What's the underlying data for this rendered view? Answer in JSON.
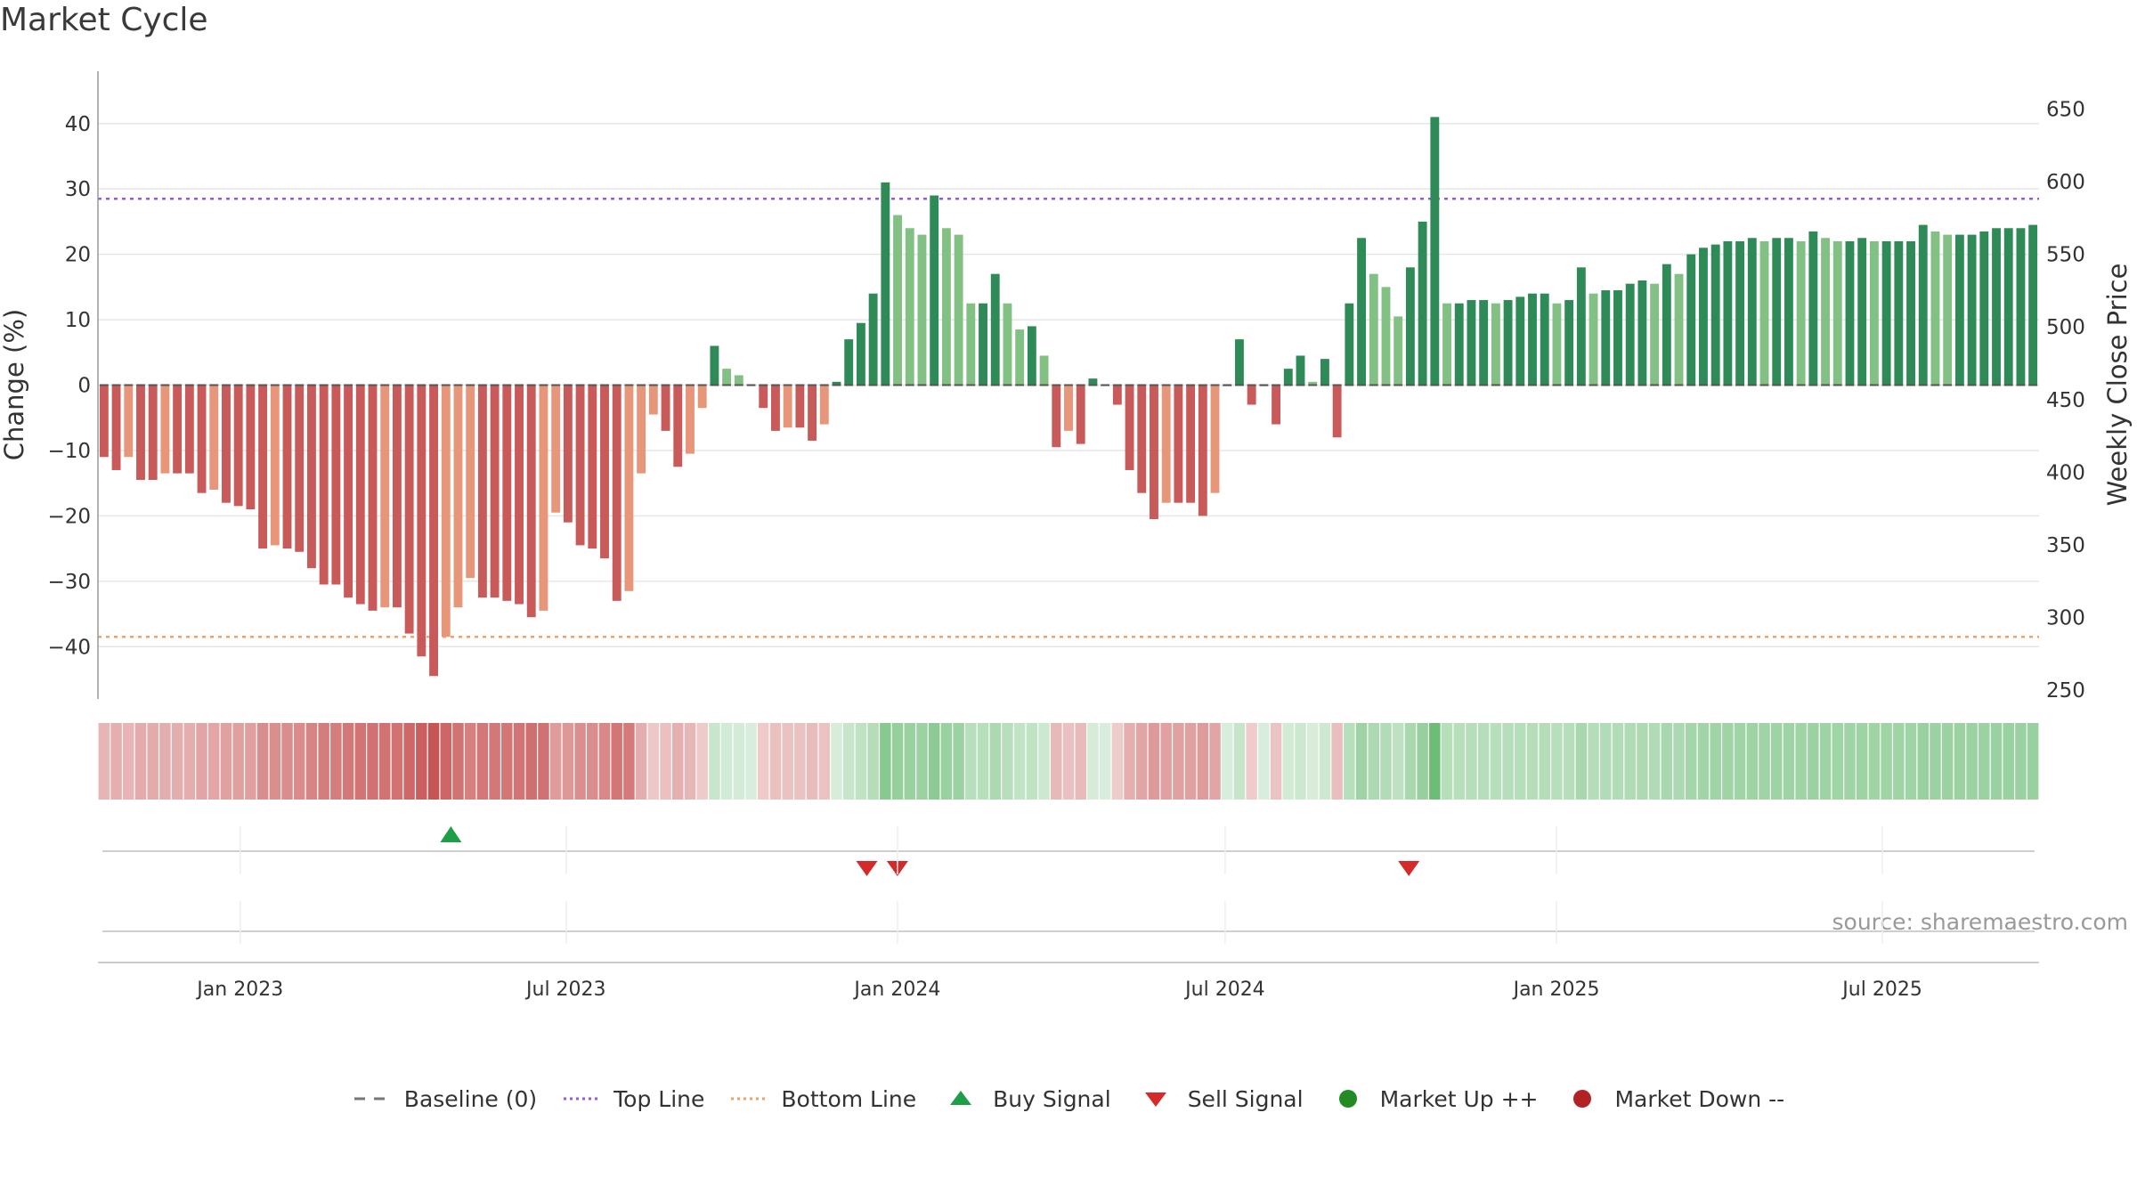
{
  "chart_title": "Market Cycle",
  "source_text": "source: sharemaestro.com",
  "colors": {
    "dark_green": "#2e8b57",
    "light_green": "#82c083",
    "dark_red": "#c85a5a",
    "light_red": "#e8967a",
    "top_line": "#9b59d0",
    "bottom_line": "#eaa36a",
    "buy": "#1e9e46",
    "sell": "#d42a2a",
    "market_up": "#228b22",
    "market_down": "#b22222"
  },
  "legend": [
    {
      "label": "Baseline (0)",
      "kind": "dash",
      "color": "#777777"
    },
    {
      "label": "Top Line",
      "kind": "dot",
      "color": "#9b59d0"
    },
    {
      "label": "Bottom Line",
      "kind": "dot",
      "color": "#eaa36a"
    },
    {
      "label": "Buy Signal",
      "kind": "up",
      "color": "#1e9e46"
    },
    {
      "label": "Sell Signal",
      "kind": "down",
      "color": "#d42a2a"
    },
    {
      "label": "Market Up ++",
      "kind": "circle",
      "color": "#228b22"
    },
    {
      "label": "Market Down --",
      "kind": "circle",
      "color": "#b22222"
    }
  ],
  "chart_data": {
    "type": "bar",
    "ylabel": "Change (%)",
    "y2label": "Weekly Close Price",
    "ylim": [
      -48,
      48
    ],
    "y2lim": [
      244,
      676
    ],
    "yticks": [
      40,
      30,
      20,
      10,
      0,
      -10,
      -20,
      -30,
      -40
    ],
    "y2ticks": [
      650,
      600,
      550,
      500,
      450,
      400,
      350,
      300,
      250
    ],
    "top_line": 28.5,
    "bottom_line": -38.5,
    "x_start": "2022-10-14",
    "x_end": "2025-09-26",
    "date_ticks": [
      {
        "label": "Jan 2023",
        "date": "2023-01-01"
      },
      {
        "label": "Jul 2023",
        "date": "2023-07-01"
      },
      {
        "label": "Jan 2024",
        "date": "2024-01-01"
      },
      {
        "label": "Jul 2024",
        "date": "2024-07-01"
      },
      {
        "label": "Jan 2025",
        "date": "2025-01-01"
      },
      {
        "label": "Jul 2025",
        "date": "2025-07-01"
      }
    ],
    "values": [
      -11,
      -13,
      -11,
      -14.5,
      -14.5,
      -13.5,
      -13.5,
      -13.5,
      -16.5,
      -16,
      -18,
      -18.5,
      -19,
      -25,
      -24.5,
      -25,
      -25.5,
      -28,
      -30.5,
      -30.5,
      -32.5,
      -33.5,
      -34.5,
      -34,
      -34,
      -38,
      -41.5,
      -44.5,
      -38.5,
      -34,
      -29.5,
      -32.5,
      -32.5,
      -33,
      -33.5,
      -35.5,
      -34.5,
      -19.5,
      -21,
      -24.5,
      -25,
      -26.5,
      -33,
      -31.5,
      -13.5,
      -4.5,
      -7,
      -12.5,
      -10.5,
      -3.5,
      6,
      2.5,
      1.5,
      0,
      -3.5,
      -7,
      -6.5,
      -6.5,
      -8.5,
      -6,
      0.5,
      7,
      9.5,
      14,
      31,
      26,
      24,
      23,
      29,
      24,
      23,
      12.5,
      12.5,
      17,
      12.5,
      8.5,
      9,
      4.5,
      -9.5,
      -7,
      -9,
      1,
      0,
      -3,
      -13,
      -16.5,
      -20.5,
      -18,
      -18,
      -18,
      -20,
      -16.5,
      0,
      7,
      -3,
      0,
      -6,
      2.5,
      4.5,
      0.5,
      4,
      -8,
      12.5,
      22.5,
      17,
      15,
      10.5,
      18,
      25,
      41,
      12.5,
      12.5,
      13,
      13,
      12.5,
      13,
      13.5,
      14,
      14,
      12.5,
      13,
      18,
      14,
      14.5,
      14.5,
      15.5,
      16,
      15.5,
      18.5,
      17,
      20,
      21,
      21.5,
      22,
      22,
      22.5,
      22,
      22.5,
      22.5,
      22,
      23.5,
      22.5,
      22,
      22,
      22.5,
      22,
      22,
      22,
      22,
      24.5,
      23.5,
      23,
      23,
      23,
      23.5,
      24,
      24,
      24,
      24.5
    ],
    "signals": [
      {
        "type": "buy",
        "date": "2023-04-28"
      },
      {
        "type": "sell",
        "date": "2023-12-15"
      },
      {
        "type": "sell",
        "date": "2024-01-01"
      },
      {
        "type": "sell",
        "date": "2024-10-11"
      }
    ]
  }
}
